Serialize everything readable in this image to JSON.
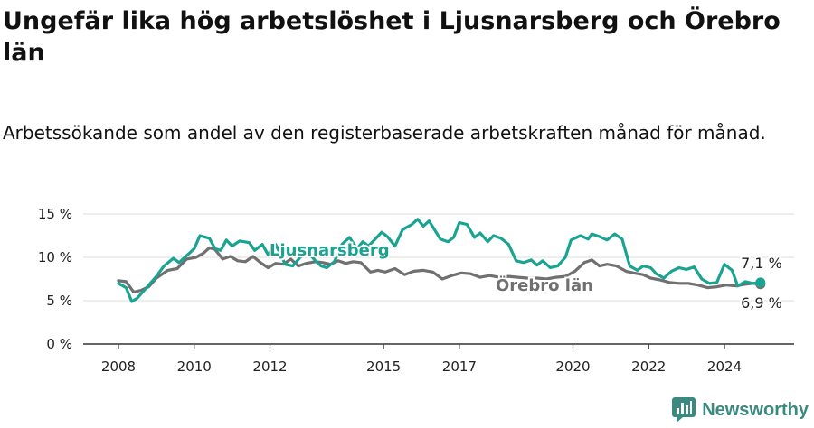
{
  "title": "Ungefär lika hög arbetslöshet i Ljusnarsberg och Örebro län",
  "subtitle": "Arbetssökande som andel av den registerbaserade arbetskraften månad för månad.",
  "brand": {
    "name": "Newsworthy",
    "icon": "newsworthy-logo-icon"
  },
  "chart_data": {
    "type": "line",
    "x_ticks": [
      "2008",
      "2010",
      "2012",
      "2015",
      "2017",
      "2020",
      "2022",
      "2024"
    ],
    "x_tick_positions": [
      2008,
      2010,
      2012,
      2015,
      2017,
      2020,
      2022,
      2024
    ],
    "xlim": [
      2007.8,
      2025.2
    ],
    "y_ticks": [
      "0 %",
      "5 %",
      "10 %",
      "15 %"
    ],
    "y_tick_values": [
      0,
      5,
      10,
      15
    ],
    "ylim": [
      0,
      15
    ],
    "grid": true,
    "colors": {
      "Ljusnarsberg": "#1ba392",
      "Örebro län": "#707070"
    },
    "series": [
      {
        "name": "Ljusnarsberg",
        "end_label": "7,1 %",
        "points": [
          [
            2008.0,
            7.0
          ],
          [
            2008.2,
            6.5
          ],
          [
            2008.35,
            4.9
          ],
          [
            2008.5,
            5.3
          ],
          [
            2008.7,
            6.3
          ],
          [
            2009.0,
            7.8
          ],
          [
            2009.2,
            9.0
          ],
          [
            2009.45,
            9.9
          ],
          [
            2009.6,
            9.4
          ],
          [
            2009.8,
            10.2
          ],
          [
            2010.0,
            11.0
          ],
          [
            2010.15,
            12.5
          ],
          [
            2010.4,
            12.2
          ],
          [
            2010.55,
            11.0
          ],
          [
            2010.7,
            10.8
          ],
          [
            2010.85,
            12.0
          ],
          [
            2011.0,
            11.3
          ],
          [
            2011.2,
            11.9
          ],
          [
            2011.45,
            11.7
          ],
          [
            2011.6,
            10.8
          ],
          [
            2011.8,
            11.5
          ],
          [
            2011.95,
            10.3
          ],
          [
            2012.15,
            11.5
          ],
          [
            2012.4,
            9.2
          ],
          [
            2012.6,
            9.0
          ],
          [
            2012.8,
            10.0
          ],
          [
            2013.0,
            10.6
          ],
          [
            2013.2,
            9.6
          ],
          [
            2013.35,
            9.0
          ],
          [
            2013.5,
            8.8
          ],
          [
            2013.7,
            9.5
          ],
          [
            2013.9,
            11.5
          ],
          [
            2014.1,
            12.3
          ],
          [
            2014.3,
            11.0
          ],
          [
            2014.45,
            11.8
          ],
          [
            2014.6,
            11.3
          ],
          [
            2014.8,
            12.2
          ],
          [
            2014.95,
            12.9
          ],
          [
            2015.1,
            12.4
          ],
          [
            2015.3,
            11.3
          ],
          [
            2015.5,
            13.2
          ],
          [
            2015.75,
            13.8
          ],
          [
            2015.9,
            14.4
          ],
          [
            2016.05,
            13.6
          ],
          [
            2016.2,
            14.2
          ],
          [
            2016.5,
            12.1
          ],
          [
            2016.7,
            11.8
          ],
          [
            2016.85,
            12.3
          ],
          [
            2017.0,
            14.0
          ],
          [
            2017.2,
            13.8
          ],
          [
            2017.4,
            12.3
          ],
          [
            2017.55,
            12.8
          ],
          [
            2017.75,
            11.8
          ],
          [
            2017.9,
            12.5
          ],
          [
            2018.1,
            12.2
          ],
          [
            2018.3,
            11.5
          ],
          [
            2018.5,
            9.6
          ],
          [
            2018.7,
            9.4
          ],
          [
            2018.9,
            9.7
          ],
          [
            2019.05,
            9.1
          ],
          [
            2019.2,
            9.6
          ],
          [
            2019.4,
            8.8
          ],
          [
            2019.6,
            9.0
          ],
          [
            2019.8,
            10.0
          ],
          [
            2019.95,
            12.0
          ],
          [
            2020.2,
            12.5
          ],
          [
            2020.4,
            12.1
          ],
          [
            2020.5,
            12.7
          ],
          [
            2020.7,
            12.4
          ],
          [
            2020.9,
            12.0
          ],
          [
            2021.1,
            12.7
          ],
          [
            2021.3,
            12.1
          ],
          [
            2021.5,
            9.0
          ],
          [
            2021.7,
            8.5
          ],
          [
            2021.85,
            9.0
          ],
          [
            2022.05,
            8.8
          ],
          [
            2022.2,
            8.1
          ],
          [
            2022.4,
            7.6
          ],
          [
            2022.6,
            8.4
          ],
          [
            2022.8,
            8.8
          ],
          [
            2023.0,
            8.6
          ],
          [
            2023.2,
            8.9
          ],
          [
            2023.4,
            7.5
          ],
          [
            2023.6,
            7.0
          ],
          [
            2023.8,
            7.1
          ],
          [
            2024.0,
            9.2
          ],
          [
            2024.2,
            8.5
          ],
          [
            2024.35,
            6.7
          ],
          [
            2024.55,
            7.2
          ],
          [
            2024.75,
            7.0
          ],
          [
            2024.95,
            7.1
          ]
        ]
      },
      {
        "name": "Örebro län",
        "end_label": "6,9 %",
        "points": [
          [
            2008.0,
            7.3
          ],
          [
            2008.2,
            7.2
          ],
          [
            2008.4,
            6.0
          ],
          [
            2008.6,
            6.2
          ],
          [
            2008.8,
            6.6
          ],
          [
            2009.0,
            7.6
          ],
          [
            2009.3,
            8.5
          ],
          [
            2009.55,
            8.7
          ],
          [
            2009.8,
            9.8
          ],
          [
            2010.05,
            10.0
          ],
          [
            2010.25,
            10.5
          ],
          [
            2010.4,
            11.1
          ],
          [
            2010.55,
            10.9
          ],
          [
            2010.75,
            9.8
          ],
          [
            2010.95,
            10.1
          ],
          [
            2011.15,
            9.6
          ],
          [
            2011.35,
            9.5
          ],
          [
            2011.55,
            10.1
          ],
          [
            2011.75,
            9.4
          ],
          [
            2011.95,
            8.8
          ],
          [
            2012.15,
            9.3
          ],
          [
            2012.35,
            9.2
          ],
          [
            2012.55,
            9.8
          ],
          [
            2012.75,
            9.0
          ],
          [
            2012.95,
            9.3
          ],
          [
            2013.2,
            9.5
          ],
          [
            2013.4,
            9.4
          ],
          [
            2013.6,
            9.2
          ],
          [
            2013.8,
            9.6
          ],
          [
            2014.0,
            9.3
          ],
          [
            2014.2,
            9.5
          ],
          [
            2014.4,
            9.4
          ],
          [
            2014.65,
            8.3
          ],
          [
            2014.85,
            8.5
          ],
          [
            2015.05,
            8.3
          ],
          [
            2015.3,
            8.7
          ],
          [
            2015.55,
            8.0
          ],
          [
            2015.8,
            8.4
          ],
          [
            2016.05,
            8.5
          ],
          [
            2016.3,
            8.3
          ],
          [
            2016.55,
            7.5
          ],
          [
            2016.8,
            7.9
          ],
          [
            2017.05,
            8.2
          ],
          [
            2017.3,
            8.1
          ],
          [
            2017.55,
            7.7
          ],
          [
            2017.8,
            7.9
          ],
          [
            2018.05,
            7.7
          ],
          [
            2018.3,
            7.8
          ],
          [
            2018.55,
            7.7
          ],
          [
            2018.8,
            7.6
          ],
          [
            2019.05,
            7.6
          ],
          [
            2019.3,
            7.5
          ],
          [
            2019.55,
            7.7
          ],
          [
            2019.8,
            7.8
          ],
          [
            2020.05,
            8.4
          ],
          [
            2020.3,
            9.4
          ],
          [
            2020.5,
            9.7
          ],
          [
            2020.7,
            9.0
          ],
          [
            2020.9,
            9.2
          ],
          [
            2021.15,
            9.0
          ],
          [
            2021.4,
            8.4
          ],
          [
            2021.6,
            8.2
          ],
          [
            2021.85,
            8.0
          ],
          [
            2022.05,
            7.6
          ],
          [
            2022.3,
            7.4
          ],
          [
            2022.55,
            7.1
          ],
          [
            2022.8,
            7.0
          ],
          [
            2023.05,
            7.0
          ],
          [
            2023.3,
            6.8
          ],
          [
            2023.55,
            6.5
          ],
          [
            2023.8,
            6.6
          ],
          [
            2024.05,
            6.8
          ],
          [
            2024.3,
            6.7
          ],
          [
            2024.55,
            6.9
          ],
          [
            2024.75,
            7.0
          ],
          [
            2024.95,
            6.9
          ]
        ]
      }
    ]
  }
}
